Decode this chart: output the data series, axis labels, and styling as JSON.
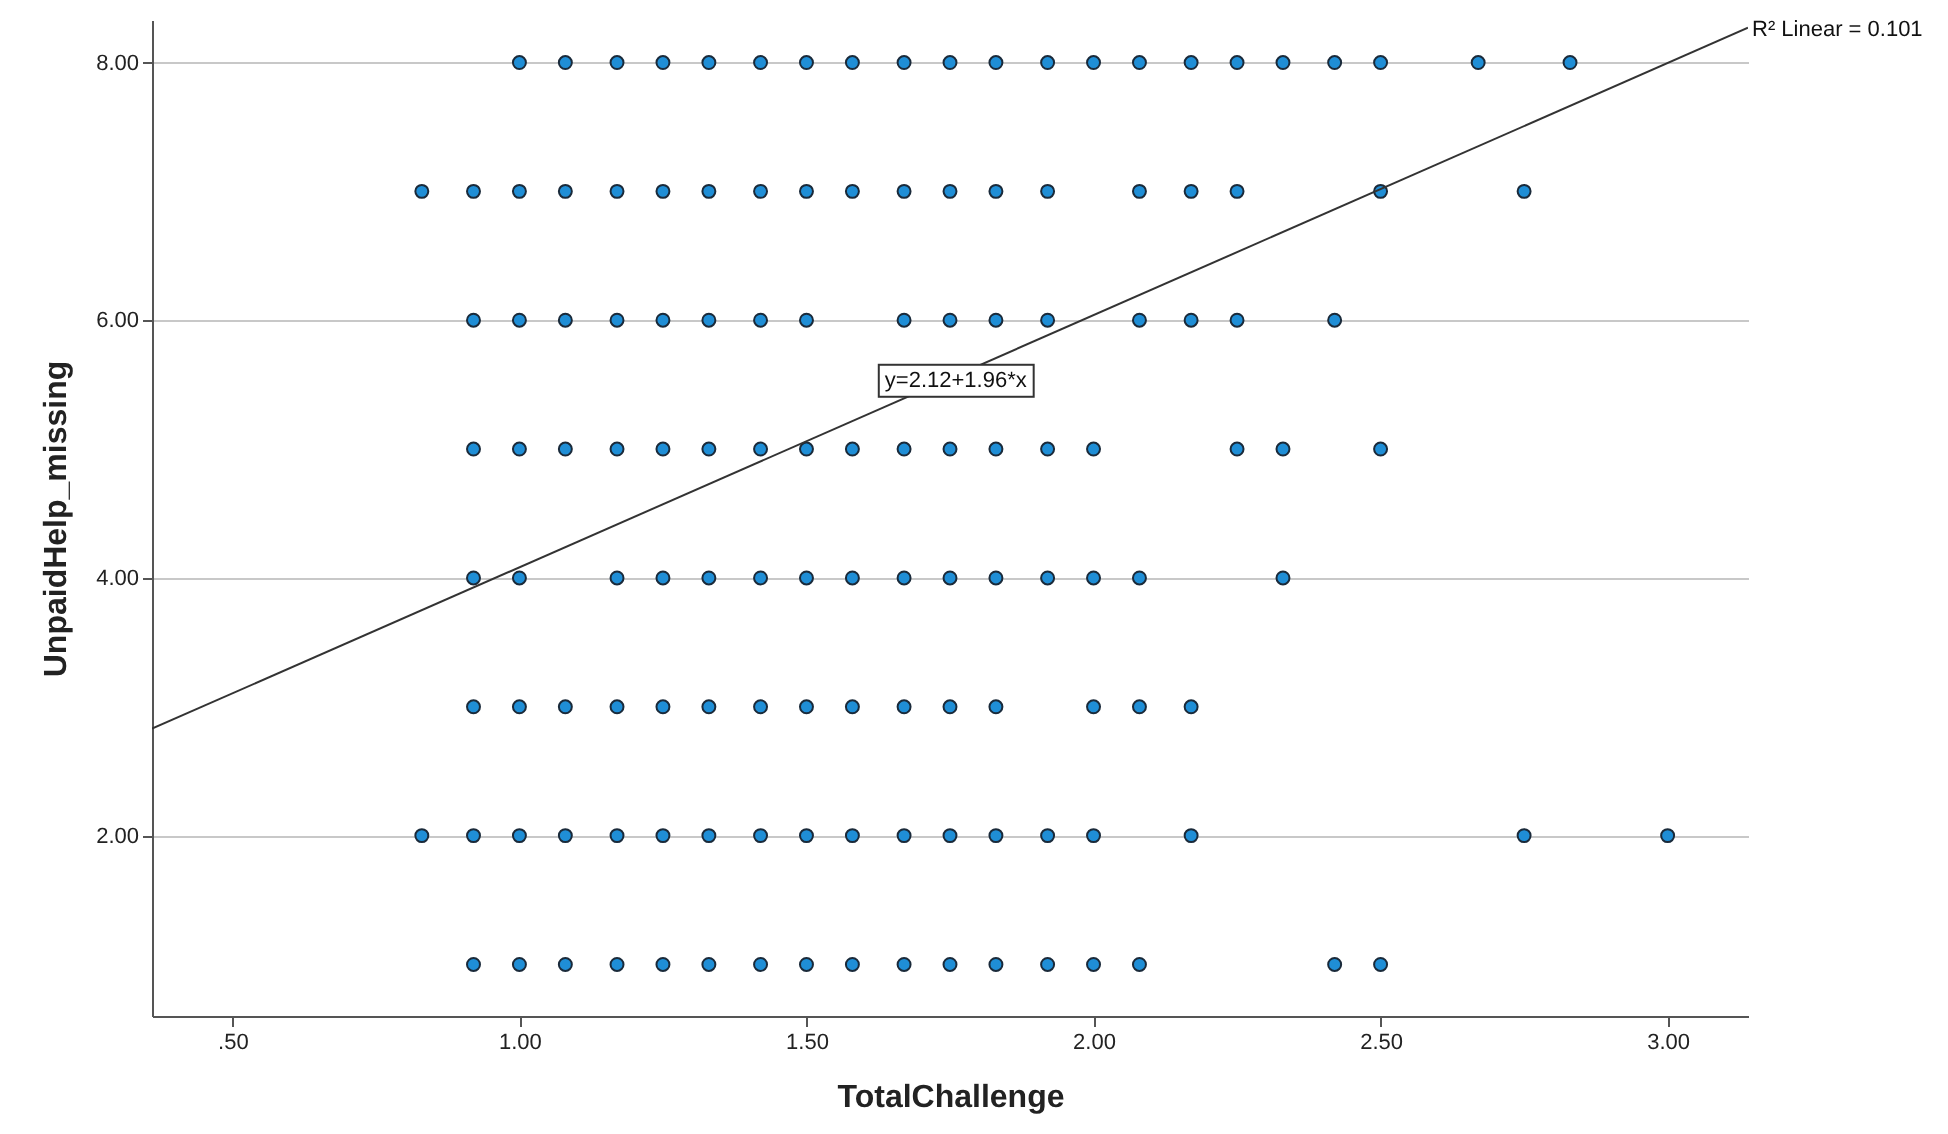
{
  "chart_data": {
    "type": "scatter",
    "xlabel": "TotalChallenge",
    "ylabel": "UnpaidHelp_missing",
    "xlim": [
      0.36,
      3.14
    ],
    "ylim": [
      0.6,
      8.33
    ],
    "xticks": [
      {
        "value": 0.5,
        "label": ".50"
      },
      {
        "value": 1,
        "label": "1.00"
      },
      {
        "value": 1.5,
        "label": "1.50"
      },
      {
        "value": 2,
        "label": "2.00"
      },
      {
        "value": 2.5,
        "label": "2.50"
      },
      {
        "value": 3,
        "label": "3.00"
      }
    ],
    "yticks": [
      {
        "value": 2,
        "label": "2.00"
      },
      {
        "value": 4,
        "label": "4.00"
      },
      {
        "value": 6,
        "label": "6.00"
      },
      {
        "value": 8,
        "label": "8.00"
      }
    ],
    "grid": "y",
    "marker": "circle",
    "series": [
      {
        "color": "#1f8ed6",
        "x": [
          1.0,
          1.08,
          1.17,
          1.25,
          1.33,
          1.42,
          1.5,
          1.58,
          1.67,
          1.75,
          1.83,
          1.92,
          2.0,
          2.08,
          2.17,
          2.25,
          2.33,
          2.42,
          2.5,
          2.67,
          2.83
        ],
        "values": [
          8,
          8,
          8,
          8,
          8,
          8,
          8,
          8,
          8,
          8,
          8,
          8,
          8,
          8,
          8,
          8,
          8,
          8,
          8,
          8,
          8
        ]
      },
      {
        "color": "#1f8ed6",
        "x": [
          0.83,
          0.92,
          1.0,
          1.08,
          1.17,
          1.25,
          1.33,
          1.42,
          1.5,
          1.58,
          1.67,
          1.75,
          1.83,
          1.92,
          2.08,
          2.17,
          2.25,
          2.5,
          2.75
        ],
        "values": [
          7,
          7,
          7,
          7,
          7,
          7,
          7,
          7,
          7,
          7,
          7,
          7,
          7,
          7,
          7,
          7,
          7,
          7,
          7
        ]
      },
      {
        "color": "#1f8ed6",
        "x": [
          0.92,
          1.0,
          1.08,
          1.17,
          1.25,
          1.33,
          1.42,
          1.5,
          1.67,
          1.75,
          1.83,
          1.92,
          2.08,
          2.17,
          2.25,
          2.42
        ],
        "values": [
          6,
          6,
          6,
          6,
          6,
          6,
          6,
          6,
          6,
          6,
          6,
          6,
          6,
          6,
          6,
          6
        ]
      },
      {
        "color": "#1f8ed6",
        "x": [
          0.92,
          1.0,
          1.08,
          1.17,
          1.25,
          1.33,
          1.42,
          1.5,
          1.58,
          1.67,
          1.75,
          1.83,
          1.92,
          2.0,
          2.25,
          2.33,
          2.5
        ],
        "values": [
          5,
          5,
          5,
          5,
          5,
          5,
          5,
          5,
          5,
          5,
          5,
          5,
          5,
          5,
          5,
          5,
          5
        ]
      },
      {
        "color": "#1f8ed6",
        "x": [
          0.92,
          1.0,
          1.17,
          1.25,
          1.33,
          1.42,
          1.5,
          1.58,
          1.67,
          1.75,
          1.83,
          1.92,
          2.0,
          2.08,
          2.33
        ],
        "values": [
          4,
          4,
          4,
          4,
          4,
          4,
          4,
          4,
          4,
          4,
          4,
          4,
          4,
          4,
          4
        ]
      },
      {
        "color": "#1f8ed6",
        "x": [
          0.92,
          1.0,
          1.08,
          1.17,
          1.25,
          1.33,
          1.42,
          1.5,
          1.58,
          1.67,
          1.75,
          1.83,
          2.0,
          2.08,
          2.17
        ],
        "values": [
          3,
          3,
          3,
          3,
          3,
          3,
          3,
          3,
          3,
          3,
          3,
          3,
          3,
          3,
          3
        ]
      },
      {
        "color": "#1f8ed6",
        "x": [
          0.83,
          0.92,
          1.0,
          1.08,
          1.17,
          1.25,
          1.33,
          1.42,
          1.5,
          1.58,
          1.67,
          1.75,
          1.83,
          1.92,
          2.0,
          2.17,
          2.75,
          3.0
        ],
        "values": [
          2,
          2,
          2,
          2,
          2,
          2,
          2,
          2,
          2,
          2,
          2,
          2,
          2,
          2,
          2,
          2,
          2,
          2
        ]
      },
      {
        "color": "#1f8ed6",
        "x": [
          0.92,
          1.0,
          1.08,
          1.17,
          1.25,
          1.33,
          1.42,
          1.5,
          1.58,
          1.67,
          1.75,
          1.83,
          1.92,
          2.0,
          2.08,
          2.42,
          2.5
        ],
        "values": [
          1,
          1,
          1,
          1,
          1,
          1,
          1,
          1,
          1,
          1,
          1,
          1,
          1,
          1,
          1,
          1,
          1
        ]
      },
      {
        "type": "line",
        "marker": "none",
        "color": "#333333",
        "x": [
          0.36,
          3.14
        ],
        "values": [
          2.83,
          8.27
        ]
      }
    ],
    "annotations": [
      {
        "text": "y=2.12+1.96*x",
        "x": 1.76,
        "y": 5.53
      },
      {
        "text": "R² Linear = 0.101",
        "x": 3.14,
        "y": 8.27
      }
    ]
  }
}
